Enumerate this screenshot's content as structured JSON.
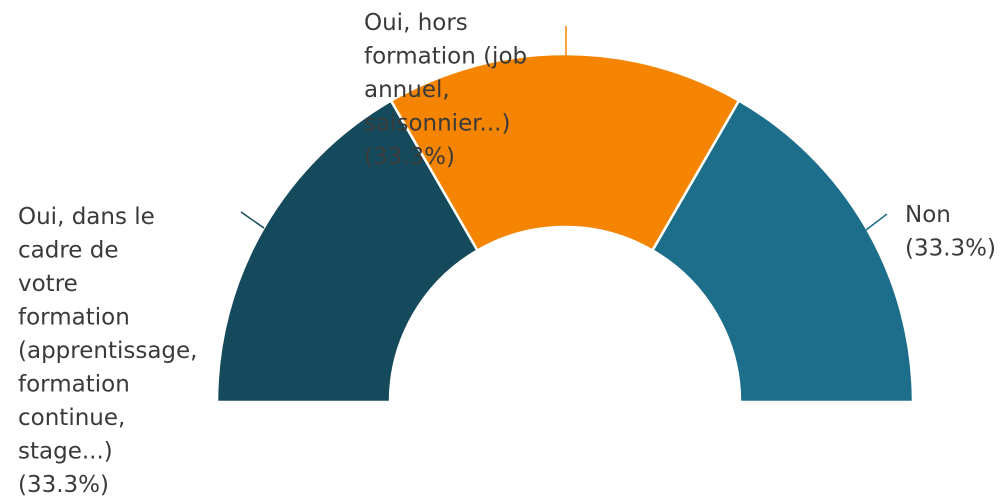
{
  "chart_data": {
    "type": "pie",
    "subtype": "half-donut",
    "title": "",
    "slices": [
      {
        "label_lines": [
          "Oui, dans le",
          "cadre de",
          "votre",
          "formation",
          "(apprentissage,",
          "formation",
          "continue,",
          "stage...)",
          "(33.3%)"
        ],
        "value": 33.3,
        "color": "#154a5c"
      },
      {
        "label_lines": [
          "Oui, hors",
          "formation (job",
          "annuel,",
          "saisonnier...)",
          "(33.3%)"
        ],
        "value": 33.3,
        "color": "#f58400"
      },
      {
        "label_lines": [
          "Non",
          "(33.3%)"
        ],
        "value": 33.3,
        "color": "#1d6e8a"
      }
    ]
  }
}
